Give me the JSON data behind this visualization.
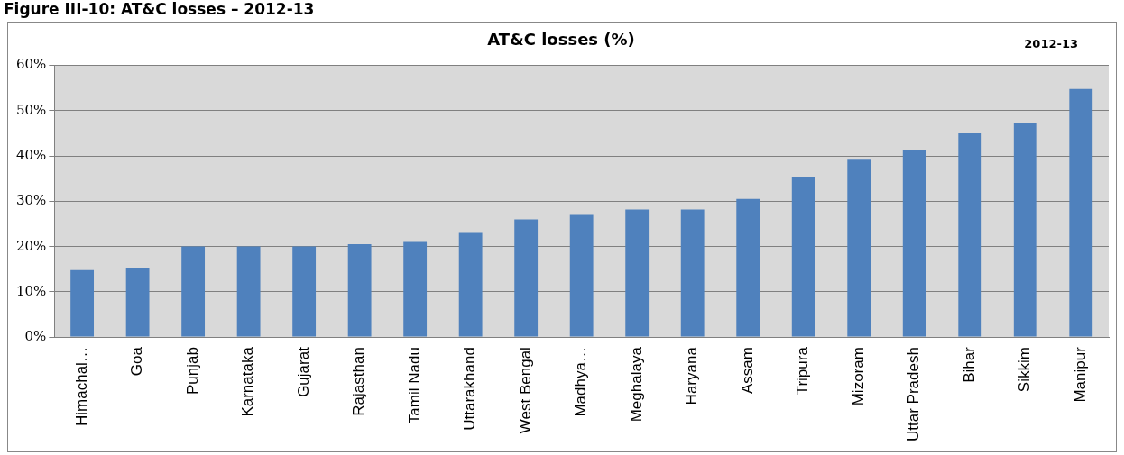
{
  "chart_data": {
    "type": "bar",
    "title": "AT&C losses (%)",
    "subtitle": "Figure III-10: AT&C losses – 2012-13",
    "annotations": [
      "2012-13"
    ],
    "categories": [
      "Himachal…",
      "Goa",
      "Punjab",
      "Karnataka",
      "Gujarat",
      "Rajasthan",
      "Tamil Nadu",
      "Uttarakhand",
      "West Bengal",
      "Madhya…",
      "Meghalaya",
      "Haryana",
      "Assam",
      "Tripura",
      "Mizoram",
      "Uttar Pradesh",
      "Bihar",
      "Sikkim",
      "Manipur"
    ],
    "values": [
      14.8,
      15.2,
      20,
      20,
      20,
      20.5,
      21,
      23,
      26,
      27,
      28.2,
      28.2,
      30.5,
      35.3,
      39.2,
      41.2,
      45,
      47.3,
      54.8
    ],
    "color": "#4f81bd",
    "ylim": [
      0,
      60
    ],
    "yticks": [
      {
        "value": 0,
        "label": "0%"
      },
      {
        "value": 10,
        "label": "10%"
      },
      {
        "value": 20,
        "label": "20%"
      },
      {
        "value": 30,
        "label": "30%"
      },
      {
        "value": 40,
        "label": "40%"
      },
      {
        "value": 50,
        "label": "50%"
      },
      {
        "value": 60,
        "label": "60%"
      }
    ],
    "grid": "y",
    "legend": false
  }
}
